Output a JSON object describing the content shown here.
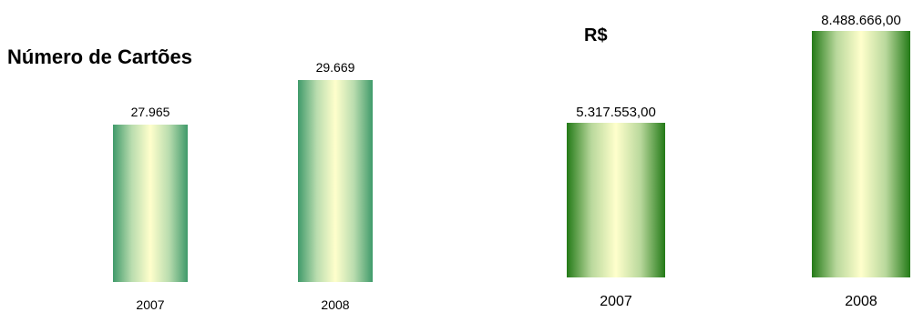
{
  "chart_data": [
    {
      "type": "bar",
      "title": "Número de Cartões",
      "categories": [
        "2007",
        "2008"
      ],
      "values": [
        27965,
        29669
      ],
      "value_labels": [
        "27.965",
        "29.669"
      ],
      "ylim": [
        22000,
        30000
      ],
      "colors": {
        "bar_edge": "#3f9a6a",
        "bar_center": "#ffffcc"
      }
    },
    {
      "type": "bar",
      "title": "R$",
      "categories": [
        "2007",
        "2008"
      ],
      "values": [
        5317553.0,
        8488666.0
      ],
      "value_labels": [
        "5.317.553,00",
        "8.488.666,00"
      ],
      "ylim": [
        0,
        8600000
      ],
      "colors": {
        "bar_edge": "#237a17",
        "bar_center": "#ffffcc"
      }
    }
  ]
}
